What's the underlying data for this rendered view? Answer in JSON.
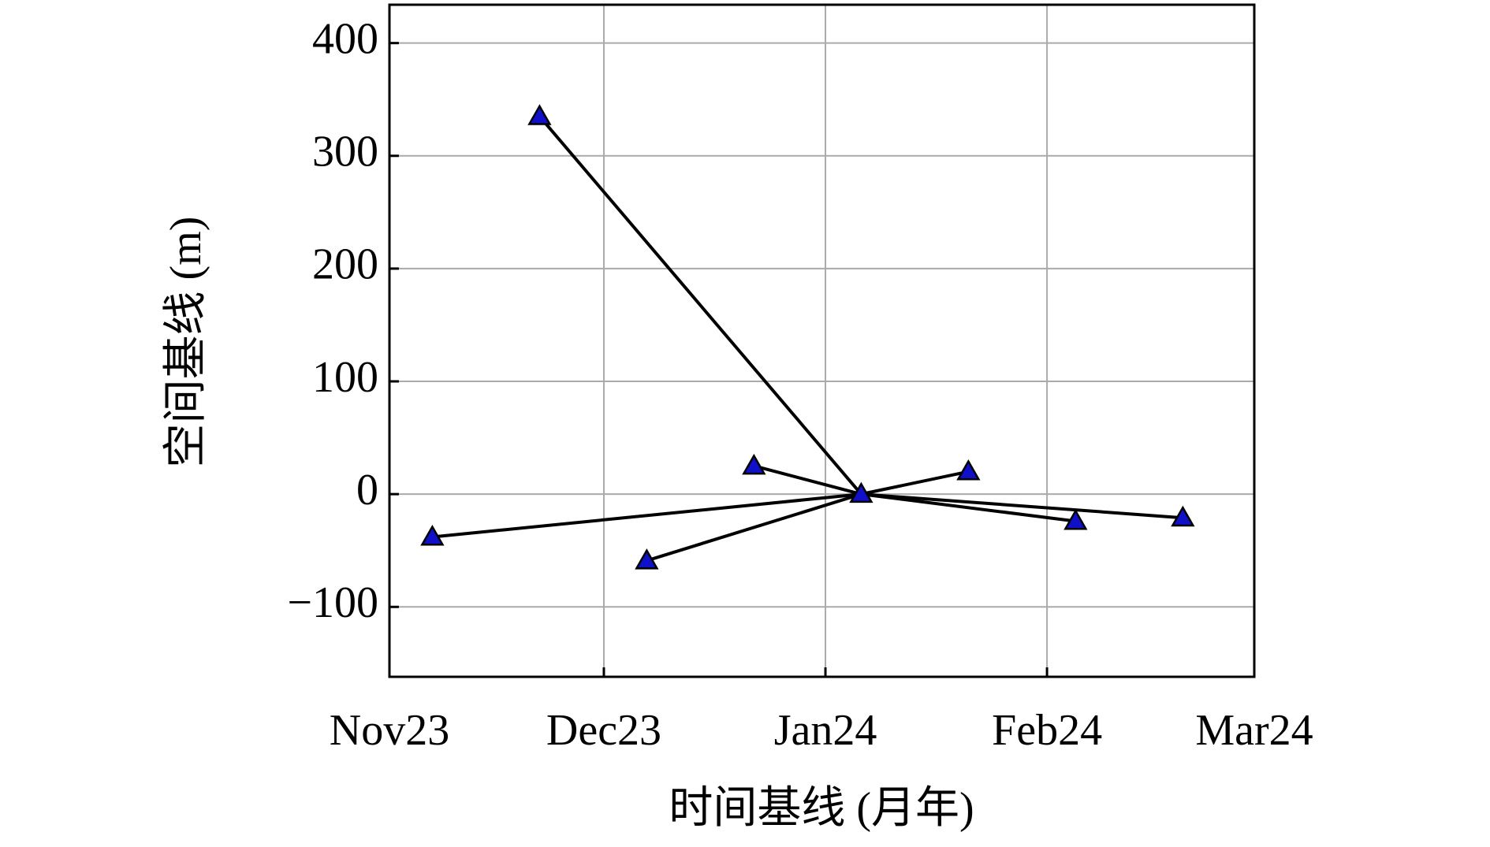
{
  "chart_data": {
    "type": "baseline-network",
    "xlabel": "时间基线 (月年)",
    "ylabel": "空间基线 (m)",
    "x": [
      6,
      21,
      36,
      51,
      66,
      81,
      96,
      111
    ],
    "values": [
      -38,
      335,
      -59,
      25,
      0,
      20,
      -24,
      -21
    ],
    "master_index": 4,
    "color": "#1010c8",
    "xlim": [
      0,
      121
    ],
    "xticks": [
      {
        "value": 0,
        "label": "Nov23"
      },
      {
        "value": 30,
        "label": "Dec23"
      },
      {
        "value": 61,
        "label": "Jan24"
      },
      {
        "value": 92,
        "label": "Feb24"
      },
      {
        "value": 121,
        "label": "Mar24"
      }
    ],
    "ylim": [
      -162,
      434
    ],
    "yticks": [
      {
        "value": -100,
        "label": "−100"
      },
      0,
      100,
      200,
      300,
      400
    ],
    "grid": true
  }
}
